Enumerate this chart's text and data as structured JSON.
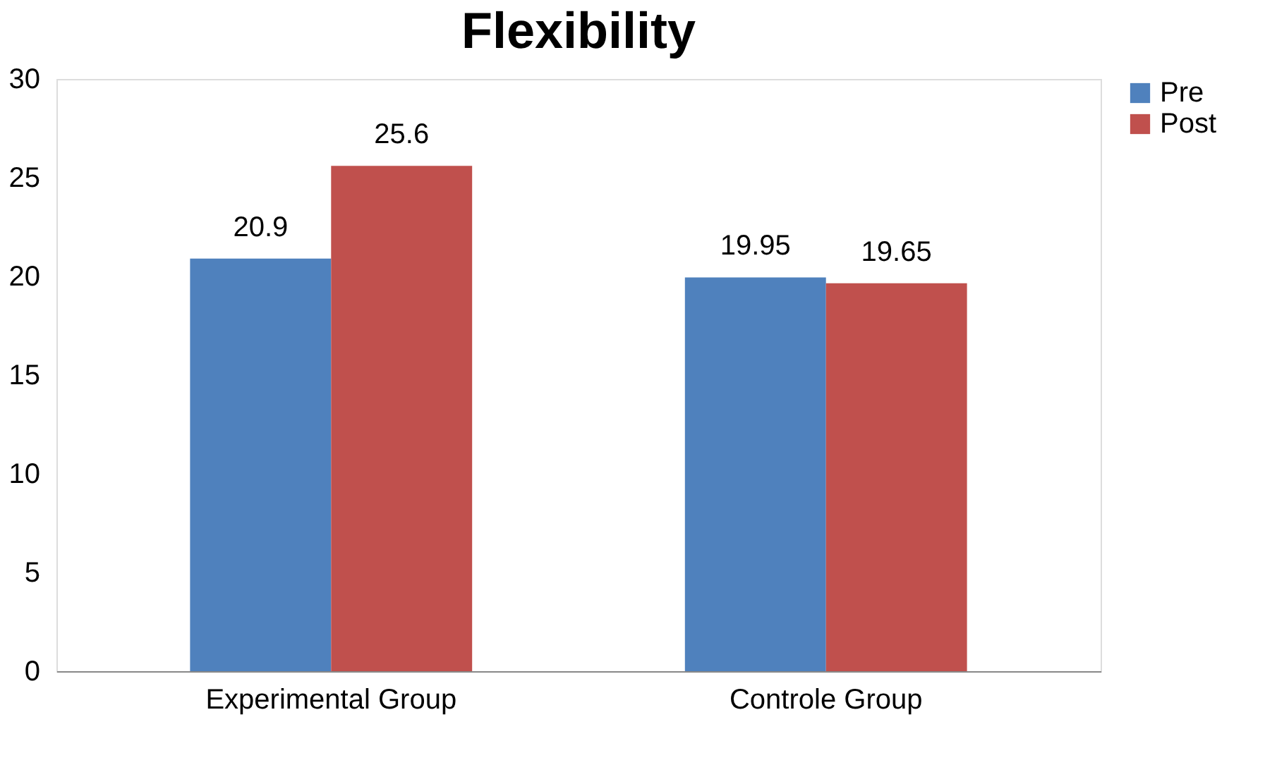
{
  "chart_data": {
    "type": "bar",
    "title": "Flexibility",
    "categories": [
      "Experimental Group",
      "Controle Group"
    ],
    "series": [
      {
        "name": "Pre",
        "color": "#4f81bd",
        "values": [
          20.9,
          19.95
        ]
      },
      {
        "name": "Post",
        "color": "#c0504d",
        "values": [
          25.6,
          19.65
        ]
      }
    ],
    "ylim": [
      0,
      30
    ],
    "yticks": [
      0,
      5,
      10,
      15,
      20,
      25,
      30
    ],
    "grid": false,
    "legend": "right",
    "data_labels": true
  }
}
